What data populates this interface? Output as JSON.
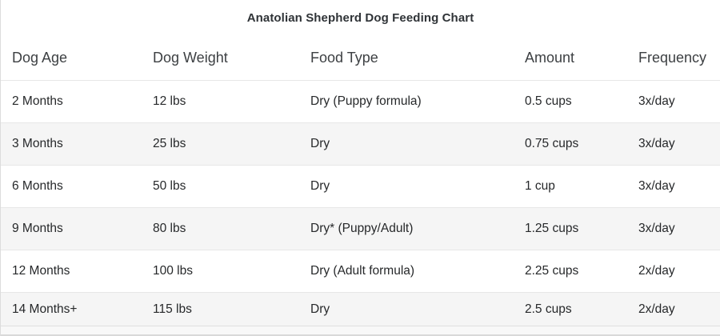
{
  "title": "Anatolian Shepherd Dog Feeding Chart",
  "chart_data": {
    "type": "table",
    "title": "Anatolian Shepherd Dog Feeding Chart",
    "columns": [
      "Dog Age",
      "Dog Weight",
      "Food Type",
      "Amount",
      "Frequency"
    ],
    "rows": [
      [
        "2 Months",
        "12 lbs",
        "Dry (Puppy formula)",
        "0.5 cups",
        "3x/day"
      ],
      [
        "3 Months",
        "25 lbs",
        "Dry",
        "0.75 cups",
        "3x/day"
      ],
      [
        "6 Months",
        "50 lbs",
        "Dry",
        "1 cup",
        "3x/day"
      ],
      [
        "9 Months",
        "80 lbs",
        "Dry* (Puppy/Adult)",
        "1.25 cups",
        "3x/day"
      ],
      [
        "12 Months",
        "100 lbs",
        "Dry (Adult formula)",
        "2.25 cups",
        "2x/day"
      ],
      [
        "14 Months+",
        "115 lbs",
        "Dry",
        "2.5 cups",
        "2x/day"
      ]
    ]
  },
  "colors": {
    "stripe_row": "#f5f5f5",
    "row_divider": "#e7e7e7",
    "header_text": "#3d4043",
    "body_text": "#26282a",
    "title_text": "#2f3337",
    "footer_strip": "#f8f8f8"
  }
}
